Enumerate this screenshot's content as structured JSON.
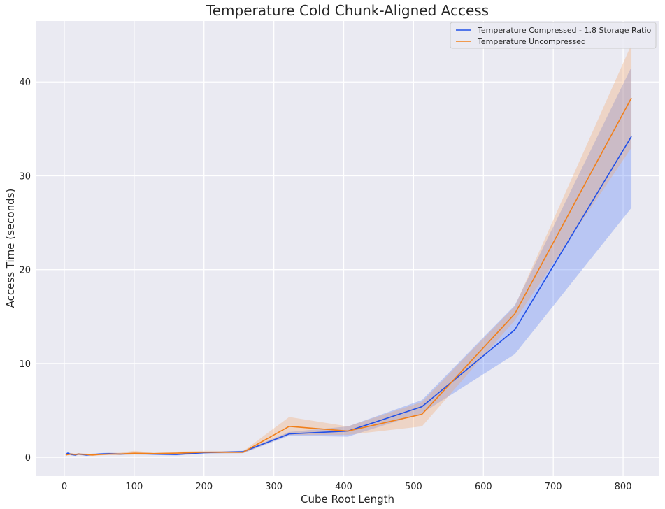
{
  "chart_data": {
    "type": "line",
    "title": "Temperature Cold Chunk-Aligned Access",
    "xlabel": "Cube Root Length",
    "ylabel": "Access Time (seconds)",
    "xlim": [
      -40,
      852
    ],
    "ylim": [
      -2.0,
      46.5
    ],
    "xticks": [
      0,
      100,
      200,
      300,
      400,
      500,
      600,
      700,
      800
    ],
    "yticks": [
      0,
      10,
      20,
      30,
      40
    ],
    "grid": true,
    "legend_position": "top-right",
    "background_color": "#eaeaf2",
    "series": [
      {
        "name": "Temperature Compressed - 1.8 Storage Ratio",
        "color": "#1f4fe8",
        "band_color": "#4a74f5",
        "x": [
          2,
          5,
          10,
          16,
          20,
          32,
          40,
          50,
          64,
          80,
          100,
          128,
          160,
          200,
          256,
          322,
          406,
          512,
          645,
          812
        ],
        "y": [
          0.3,
          0.45,
          0.3,
          0.25,
          0.35,
          0.25,
          0.3,
          0.35,
          0.4,
          0.35,
          0.4,
          0.35,
          0.3,
          0.5,
          0.6,
          2.5,
          2.8,
          5.4,
          13.6,
          34.2
        ],
        "lower": [
          0.2,
          0.3,
          0.2,
          0.15,
          0.25,
          0.15,
          0.2,
          0.25,
          0.3,
          0.25,
          0.3,
          0.25,
          0.2,
          0.4,
          0.45,
          2.3,
          2.2,
          4.7,
          11.0,
          26.6
        ],
        "upper": [
          0.4,
          0.6,
          0.4,
          0.35,
          0.45,
          0.35,
          0.4,
          0.45,
          0.5,
          0.45,
          0.5,
          0.45,
          0.4,
          0.6,
          0.7,
          2.7,
          3.3,
          6.1,
          16.2,
          41.6
        ]
      },
      {
        "name": "Temperature Uncompressed",
        "color": "#f17f19",
        "band_color": "#f5a15f",
        "x": [
          2,
          5,
          10,
          16,
          20,
          32,
          40,
          50,
          64,
          80,
          100,
          128,
          160,
          200,
          256,
          322,
          406,
          512,
          645,
          812
        ],
        "y": [
          0.25,
          0.3,
          0.35,
          0.3,
          0.35,
          0.3,
          0.25,
          0.3,
          0.35,
          0.35,
          0.45,
          0.4,
          0.45,
          0.55,
          0.55,
          3.3,
          2.8,
          4.6,
          15.3,
          38.3
        ],
        "lower": [
          0.15,
          0.2,
          0.25,
          0.2,
          0.25,
          0.2,
          0.15,
          0.2,
          0.25,
          0.25,
          0.3,
          0.3,
          0.35,
          0.45,
          0.45,
          2.4,
          2.4,
          3.3,
          14.6,
          33.0
        ],
        "upper": [
          0.35,
          0.4,
          0.45,
          0.4,
          0.45,
          0.4,
          0.35,
          0.4,
          0.45,
          0.5,
          0.7,
          0.5,
          0.6,
          0.7,
          0.65,
          4.3,
          3.3,
          5.9,
          16.1,
          44.0
        ]
      }
    ]
  }
}
